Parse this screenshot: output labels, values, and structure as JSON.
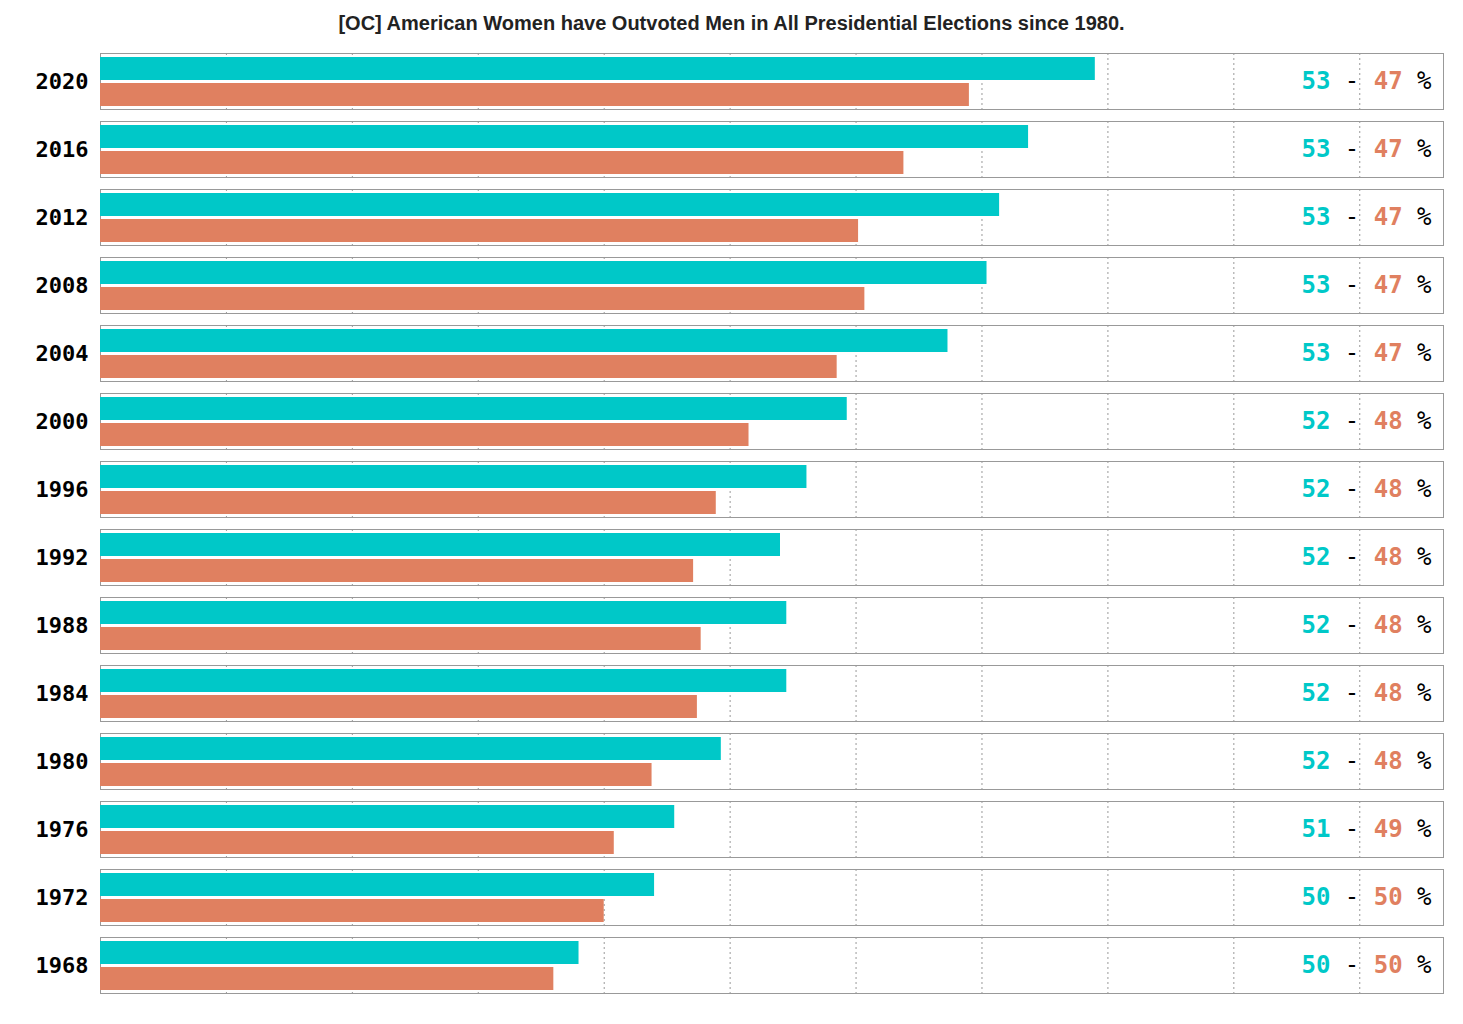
{
  "chart_data": {
    "type": "bar",
    "orientation": "horizontal",
    "title": "[OC] American Women have Outvoted Men in All Presidential Elections since 1980.",
    "categories": [
      "2020",
      "2016",
      "2012",
      "2008",
      "2004",
      "2000",
      "1996",
      "1992",
      "1988",
      "1984",
      "1980",
      "1976",
      "1972",
      "1968"
    ],
    "series": [
      {
        "color": "#00c8c8",
        "values": [
          79.0,
          73.7,
          71.4,
          70.4,
          67.3,
          59.3,
          56.1,
          54.0,
          54.5,
          54.5,
          49.3,
          45.6,
          44.0,
          38.0
        ],
        "shares": [
          53,
          53,
          53,
          53,
          53,
          52,
          52,
          52,
          52,
          52,
          52,
          51,
          50,
          50
        ]
      },
      {
        "color": "#e08060",
        "values": [
          69.0,
          63.8,
          60.2,
          60.7,
          58.5,
          51.5,
          48.9,
          47.1,
          47.7,
          47.4,
          43.8,
          40.8,
          40.0,
          36.0
        ],
        "shares": [
          47,
          47,
          47,
          47,
          47,
          48,
          48,
          48,
          48,
          48,
          48,
          49,
          50,
          50
        ]
      }
    ],
    "xlim": [
      0,
      106.65
    ],
    "xticks": [
      10,
      20,
      30,
      40,
      50,
      60,
      70,
      80,
      90,
      100
    ],
    "grid": true,
    "tick_labels": "y",
    "annotation_separator": "-",
    "annotation_suffix": "%"
  }
}
